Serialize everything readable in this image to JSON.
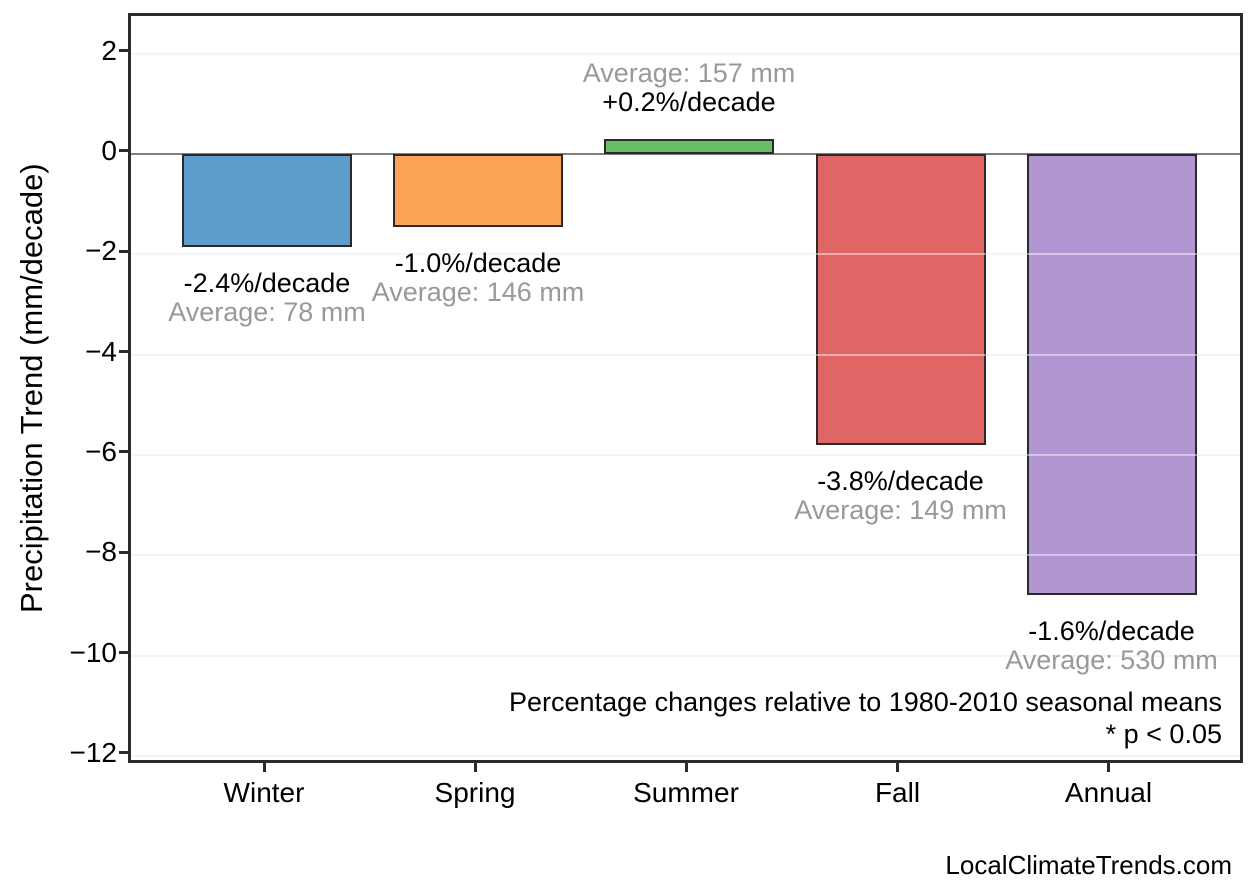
{
  "footer": {
    "watermark": "LocalClimateTrends.com"
  },
  "chart_data": {
    "type": "bar",
    "title": "",
    "xlabel": "",
    "ylabel": "Precipitation Trend (mm/decade)",
    "categories": [
      "Winter",
      "Spring",
      "Summer",
      "Fall",
      "Annual"
    ],
    "values": [
      -1.85,
      -1.45,
      0.3,
      -5.8,
      -8.8
    ],
    "value_unit": "mm/decade",
    "bars": [
      {
        "category": "Winter",
        "value": -1.85,
        "percent_label": "-2.4%/decade",
        "average_label": "Average: 78 mm",
        "color": "#5E9DCB"
      },
      {
        "category": "Spring",
        "value": -1.45,
        "percent_label": "-1.0%/decade",
        "average_label": "Average: 146 mm",
        "color": "#FCA558"
      },
      {
        "category": "Summer",
        "value": 0.3,
        "percent_label": "+0.2%/decade",
        "average_label": "Average: 157 mm",
        "color": "#68BC66"
      },
      {
        "category": "Fall",
        "value": -5.8,
        "percent_label": "-3.8%/decade",
        "average_label": "Average: 149 mm",
        "color": "#E06666"
      },
      {
        "category": "Annual",
        "value": -8.8,
        "percent_label": "-1.6%/decade",
        "average_label": "Average: 530 mm",
        "color": "#B296D1"
      }
    ],
    "y_ticks": [
      {
        "value": 2,
        "label": "2"
      },
      {
        "value": 0,
        "label": "0"
      },
      {
        "value": -2,
        "label": "−2"
      },
      {
        "value": -4,
        "label": "−4"
      },
      {
        "value": -6,
        "label": "−6"
      },
      {
        "value": -8,
        "label": "−8"
      },
      {
        "value": -10,
        "label": "−10"
      },
      {
        "value": -12,
        "label": "−12"
      }
    ],
    "ylim": [
      -12.2,
      2.75
    ],
    "grid": true,
    "legend": null,
    "notes": [
      "Percentage changes relative to 1980-2010 seasonal means",
      "* p < 0.05"
    ],
    "colors": {
      "bar_edge": "#2A2A2A",
      "grid_line": "#ECECEC",
      "zero_line": "#808080",
      "frame": "#2B2B2B",
      "percent_text": "#000000",
      "average_text": "#999999"
    }
  }
}
